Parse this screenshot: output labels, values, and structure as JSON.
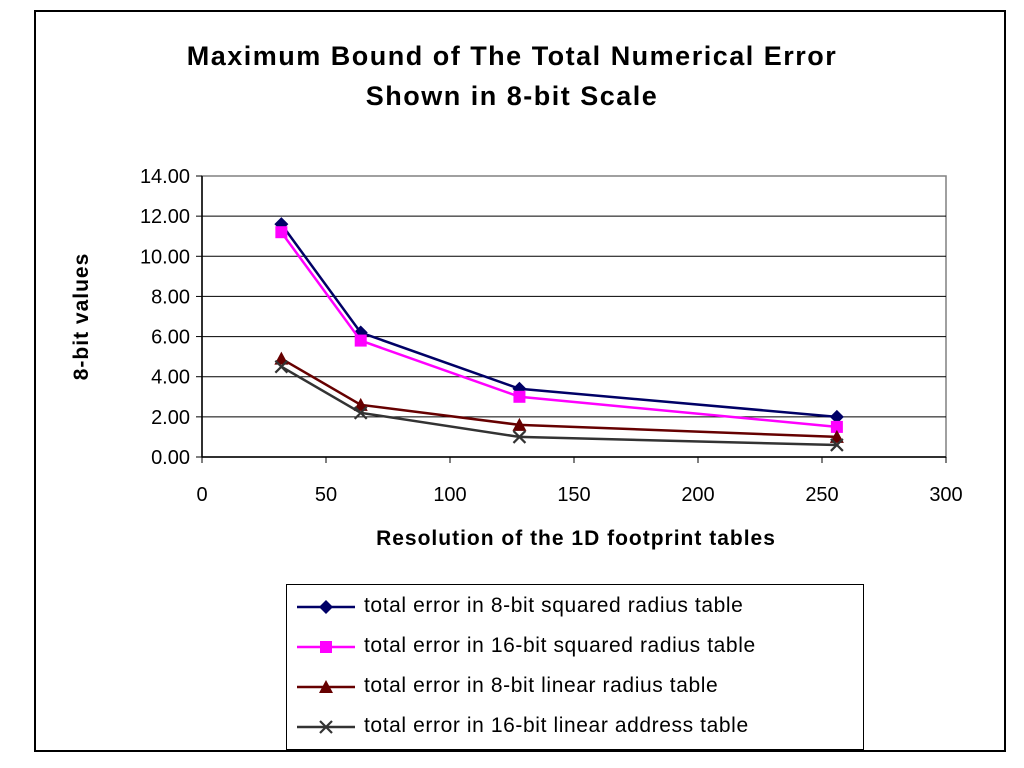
{
  "chart_data": {
    "type": "line",
    "title": [
      "Maximum Bound of The Total Numerical Error",
      "Shown in 8-bit Scale"
    ],
    "xlabel": "Resolution of the 1D footprint tables",
    "ylabel": "8-bit values",
    "xlim": [
      0,
      300
    ],
    "ylim": [
      0,
      14
    ],
    "x_ticks": [
      "0",
      "50",
      "100",
      "150",
      "200",
      "250",
      "300"
    ],
    "y_ticks": [
      "0.00",
      "2.00",
      "4.00",
      "6.00",
      "8.00",
      "10.00",
      "12.00",
      "14.00"
    ],
    "grid": "horizontal",
    "legend_position": "bottom",
    "x": [
      32,
      64,
      128,
      256
    ],
    "series": [
      {
        "name": "total error in 8-bit squared radius table",
        "values": [
          11.6,
          6.2,
          3.4,
          2.0
        ],
        "color": "#000066",
        "marker": "diamond"
      },
      {
        "name": "total error in 16-bit squared radius table",
        "values": [
          11.2,
          5.8,
          3.0,
          1.5
        ],
        "color": "#ff00ff",
        "marker": "square"
      },
      {
        "name": "total error in 8-bit linear radius table",
        "values": [
          4.9,
          2.6,
          1.6,
          1.0
        ],
        "color": "#660000",
        "marker": "triangle"
      },
      {
        "name": "total error in 16-bit linear address table",
        "values": [
          4.5,
          2.2,
          1.0,
          0.6
        ],
        "color": "#333333",
        "marker": "x"
      }
    ]
  }
}
